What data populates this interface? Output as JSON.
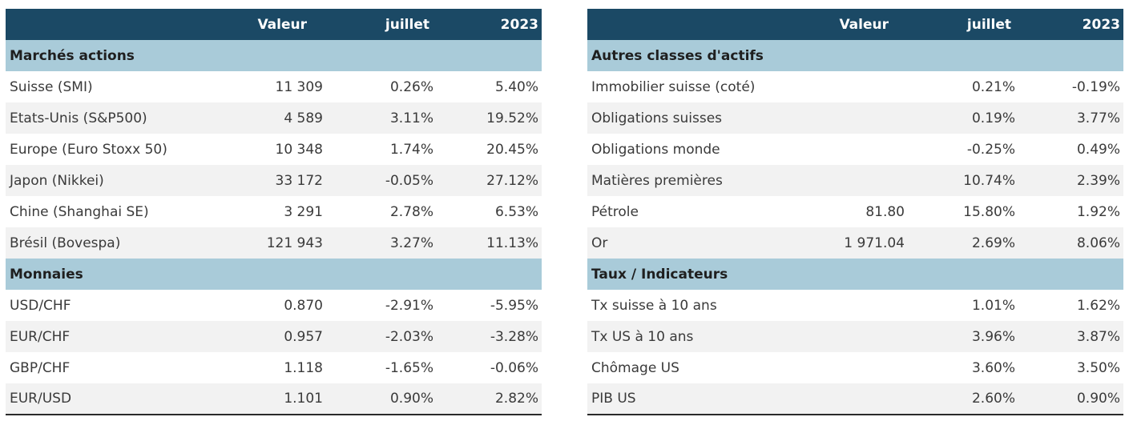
{
  "headers": {
    "name": "",
    "valeur": "Valeur",
    "juillet": "juillet",
    "year": "2023"
  },
  "left": {
    "sections": [
      {
        "title": "Marchés actions",
        "rows": [
          {
            "name": "Suisse (SMI)",
            "valeur": "11 309",
            "juillet": "0.26%",
            "year": "5.40%"
          },
          {
            "name": "Etats-Unis (S&P500)",
            "valeur": "4 589",
            "juillet": "3.11%",
            "year": "19.52%"
          },
          {
            "name": "Europe (Euro Stoxx 50)",
            "valeur": "10 348",
            "juillet": "1.74%",
            "year": "20.45%"
          },
          {
            "name": "Japon (Nikkei)",
            "valeur": "33 172",
            "juillet": "-0.05%",
            "year": "27.12%"
          },
          {
            "name": "Chine (Shanghai SE)",
            "valeur": "3 291",
            "juillet": "2.78%",
            "year": "6.53%"
          },
          {
            "name": "Brésil (Bovespa)",
            "valeur": "121 943",
            "juillet": "3.27%",
            "year": "11.13%"
          }
        ]
      },
      {
        "title": "Monnaies",
        "rows": [
          {
            "name": "USD/CHF",
            "valeur": "0.870",
            "juillet": "-2.91%",
            "year": "-5.95%"
          },
          {
            "name": "EUR/CHF",
            "valeur": "0.957",
            "juillet": "-2.03%",
            "year": "-3.28%"
          },
          {
            "name": "GBP/CHF",
            "valeur": "1.118",
            "juillet": "-1.65%",
            "year": "-0.06%"
          },
          {
            "name": "EUR/USD",
            "valeur": "1.101",
            "juillet": "0.90%",
            "year": "2.82%"
          }
        ]
      }
    ]
  },
  "right": {
    "sections": [
      {
        "title": "Autres classes d'actifs",
        "rows": [
          {
            "name": "Immobilier suisse (coté)",
            "valeur": "",
            "juillet": "0.21%",
            "year": "-0.19%"
          },
          {
            "name": "Obligations suisses",
            "valeur": "",
            "juillet": "0.19%",
            "year": "3.77%"
          },
          {
            "name": "Obligations monde",
            "valeur": "",
            "juillet": "-0.25%",
            "year": "0.49%"
          },
          {
            "name": "Matières premières",
            "valeur": "",
            "juillet": "10.74%",
            "year": "2.39%"
          },
          {
            "name": "Pétrole",
            "valeur": "81.80",
            "juillet": "15.80%",
            "year": "1.92%"
          },
          {
            "name": "Or",
            "valeur": "1 971.04",
            "juillet": "2.69%",
            "year": "8.06%"
          }
        ]
      },
      {
        "title": "Taux / Indicateurs",
        "rows": [
          {
            "name": "Tx suisse à 10 ans",
            "valeur": "",
            "juillet": "1.01%",
            "year": "1.62%"
          },
          {
            "name": "Tx US à 10 ans",
            "valeur": "",
            "juillet": "3.96%",
            "year": "3.87%"
          },
          {
            "name": "Chômage US",
            "valeur": "",
            "juillet": "3.60%",
            "year": "3.50%"
          },
          {
            "name": "PIB US",
            "valeur": "",
            "juillet": "2.60%",
            "year": "0.90%"
          }
        ]
      }
    ]
  }
}
